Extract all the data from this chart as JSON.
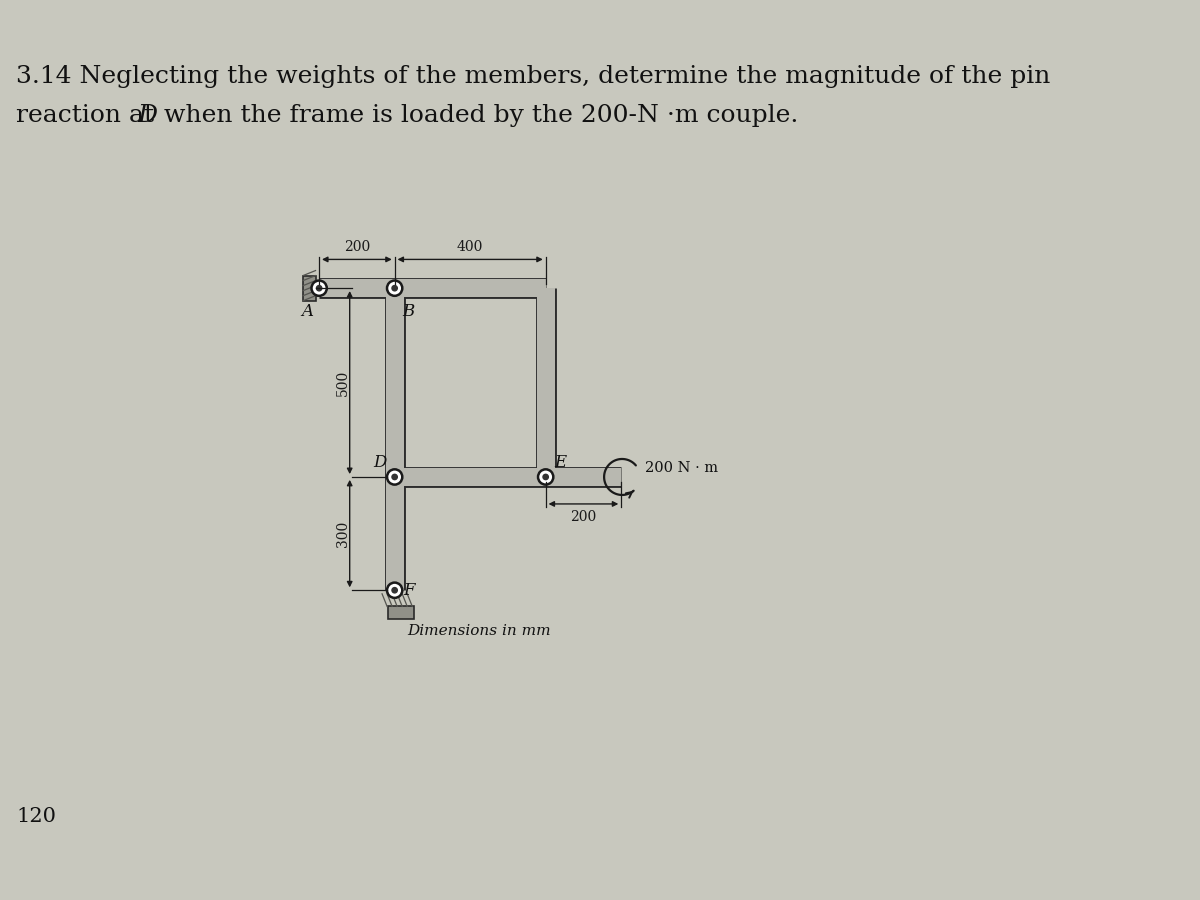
{
  "title_line1": "3.14 Neglecting the weights of the members, determine the magnitude of the pin",
  "title_line2": "reaction at D when the frame is loaded by the 200-N ·m couple.",
  "bg_color": "#c8c8be",
  "member_color": "#b8b8b0",
  "member_edge_color": "#2a2a2a",
  "wall_color": "#909088",
  "dim_color": "#1a1a1a",
  "label_fontsize": 12,
  "dim_fontsize": 10,
  "title_fontsize": 18,
  "page_number": "120",
  "caption": "Dimensions in mm",
  "couple_label": "200 N · m",
  "dim_200_top": "200",
  "dim_400_top": "400",
  "dim_500_left": "500",
  "dim_300_left": "300",
  "dim_200_right": "200",
  "label_A": "A",
  "label_B": "B",
  "label_D": "D",
  "label_E": "E",
  "label_F": "F"
}
